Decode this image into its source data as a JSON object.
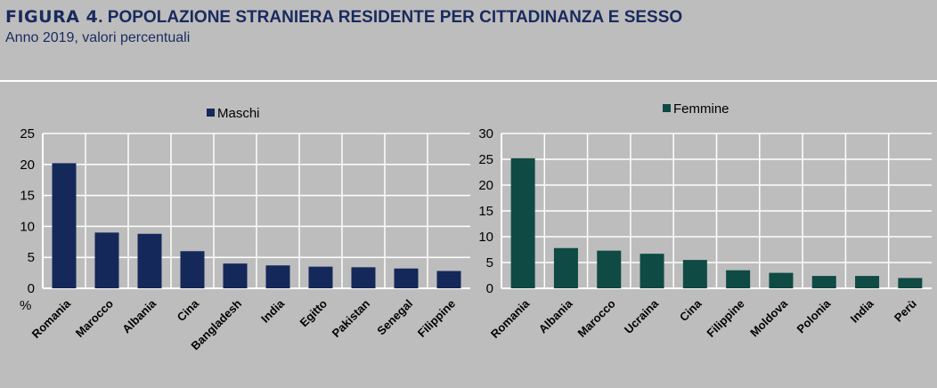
{
  "figure": {
    "label": "FIGURA 4",
    "title": ". POPOLAZIONE STRANIERA RESIDENTE PER CITTADINANZA E SESSO",
    "subtitle": "Anno 2019, valori percentuali"
  },
  "chart_data": [
    {
      "type": "bar",
      "legend": "Maschi",
      "legend_position": "top-center",
      "ylabel": "%",
      "ylim": [
        0,
        25
      ],
      "yticks": [
        0,
        5,
        10,
        15,
        20,
        25
      ],
      "grid": true,
      "color": "#14285a",
      "categories": [
        "Romania",
        "Marocco",
        "Albania",
        "Cina",
        "Bangladesh",
        "India",
        "Egitto",
        "Pakistan",
        "Senegal",
        "Filippine"
      ],
      "values": [
        20.2,
        9.0,
        8.8,
        6.0,
        4.0,
        3.7,
        3.5,
        3.4,
        3.2,
        2.8
      ]
    },
    {
      "type": "bar",
      "legend": "Femmine",
      "legend_position": "top-center",
      "ylim": [
        0,
        30
      ],
      "yticks": [
        0,
        5,
        10,
        15,
        20,
        25,
        30
      ],
      "grid": true,
      "color": "#0f4a44",
      "categories": [
        "Romania",
        "Albania",
        "Marocco",
        "Ucraina",
        "Cina",
        "Filippine",
        "Moldova",
        "Polonia",
        "India",
        "Perù"
      ],
      "values": [
        25.2,
        7.8,
        7.3,
        6.7,
        5.5,
        3.5,
        3.0,
        2.4,
        2.4,
        2.0
      ]
    }
  ]
}
